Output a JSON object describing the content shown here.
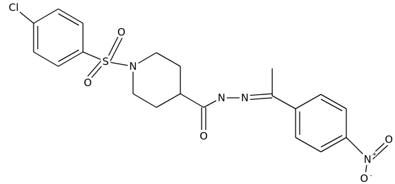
{
  "atoms": [
    {
      "label": "Cl"
    },
    {
      "label": "S"
    },
    {
      "label": "O"
    },
    {
      "label": "O"
    },
    {
      "label": "N"
    },
    {
      "label": "O"
    },
    {
      "label": "N"
    },
    {
      "label": "N"
    },
    {
      "label": "N",
      "charge": "+"
    },
    {
      "label": "O"
    },
    {
      "label": "O",
      "charge": "-"
    }
  ]
}
